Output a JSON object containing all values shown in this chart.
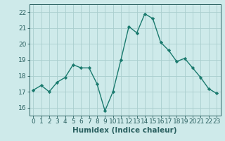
{
  "xlabel": "Humidex (Indice chaleur)",
  "x_values": [
    0,
    1,
    2,
    3,
    4,
    5,
    6,
    7,
    8,
    9,
    10,
    11,
    12,
    13,
    14,
    15,
    16,
    17,
    18,
    19,
    20,
    21,
    22,
    23
  ],
  "y_values": [
    17.1,
    17.4,
    17.0,
    17.6,
    17.9,
    18.7,
    18.5,
    18.5,
    17.5,
    15.8,
    17.0,
    19.0,
    21.1,
    20.7,
    21.9,
    21.6,
    20.1,
    19.6,
    18.9,
    19.1,
    18.5,
    17.9,
    17.2,
    16.9
  ],
  "line_color": "#1a7a6e",
  "marker": "D",
  "marker_size": 2.2,
  "bg_color": "#ceeaea",
  "grid_color": "#aacece",
  "ylim": [
    15.5,
    22.5
  ],
  "yticks": [
    16,
    17,
    18,
    19,
    20,
    21,
    22
  ],
  "xticks": [
    0,
    1,
    2,
    3,
    4,
    5,
    6,
    7,
    8,
    9,
    10,
    11,
    12,
    13,
    14,
    15,
    16,
    17,
    18,
    19,
    20,
    21,
    22,
    23
  ],
  "axis_color": "#2a6060",
  "tick_color": "#2a6060",
  "xlabel_fontsize": 7.5,
  "tick_fontsize": 6.5
}
